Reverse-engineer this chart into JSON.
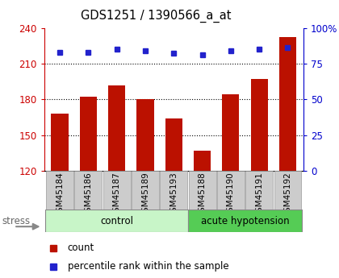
{
  "title": "GDS1251 / 1390566_a_at",
  "samples": [
    "GSM45184",
    "GSM45186",
    "GSM45187",
    "GSM45189",
    "GSM45193",
    "GSM45188",
    "GSM45190",
    "GSM45191",
    "GSM45192"
  ],
  "counts": [
    168,
    182,
    192,
    180,
    164,
    137,
    184,
    197,
    232
  ],
  "percentiles": [
    83,
    83,
    85,
    84,
    82,
    81,
    84,
    85,
    86
  ],
  "groups": [
    {
      "label": "control",
      "start": 0,
      "end": 5,
      "color": "#c8f5c8"
    },
    {
      "label": "acute hypotension",
      "start": 5,
      "end": 9,
      "color": "#55cc55"
    }
  ],
  "bar_color": "#bb1100",
  "dot_color": "#2222cc",
  "ylim_left": [
    120,
    240
  ],
  "ylim_right": [
    0,
    100
  ],
  "yticks_left": [
    120,
    150,
    180,
    210,
    240
  ],
  "yticks_right": [
    0,
    25,
    50,
    75,
    100
  ],
  "grid_vals": [
    150,
    180,
    210
  ],
  "left_axis_color": "#cc0000",
  "right_axis_color": "#0000cc",
  "tick_area_color": "#cccccc"
}
